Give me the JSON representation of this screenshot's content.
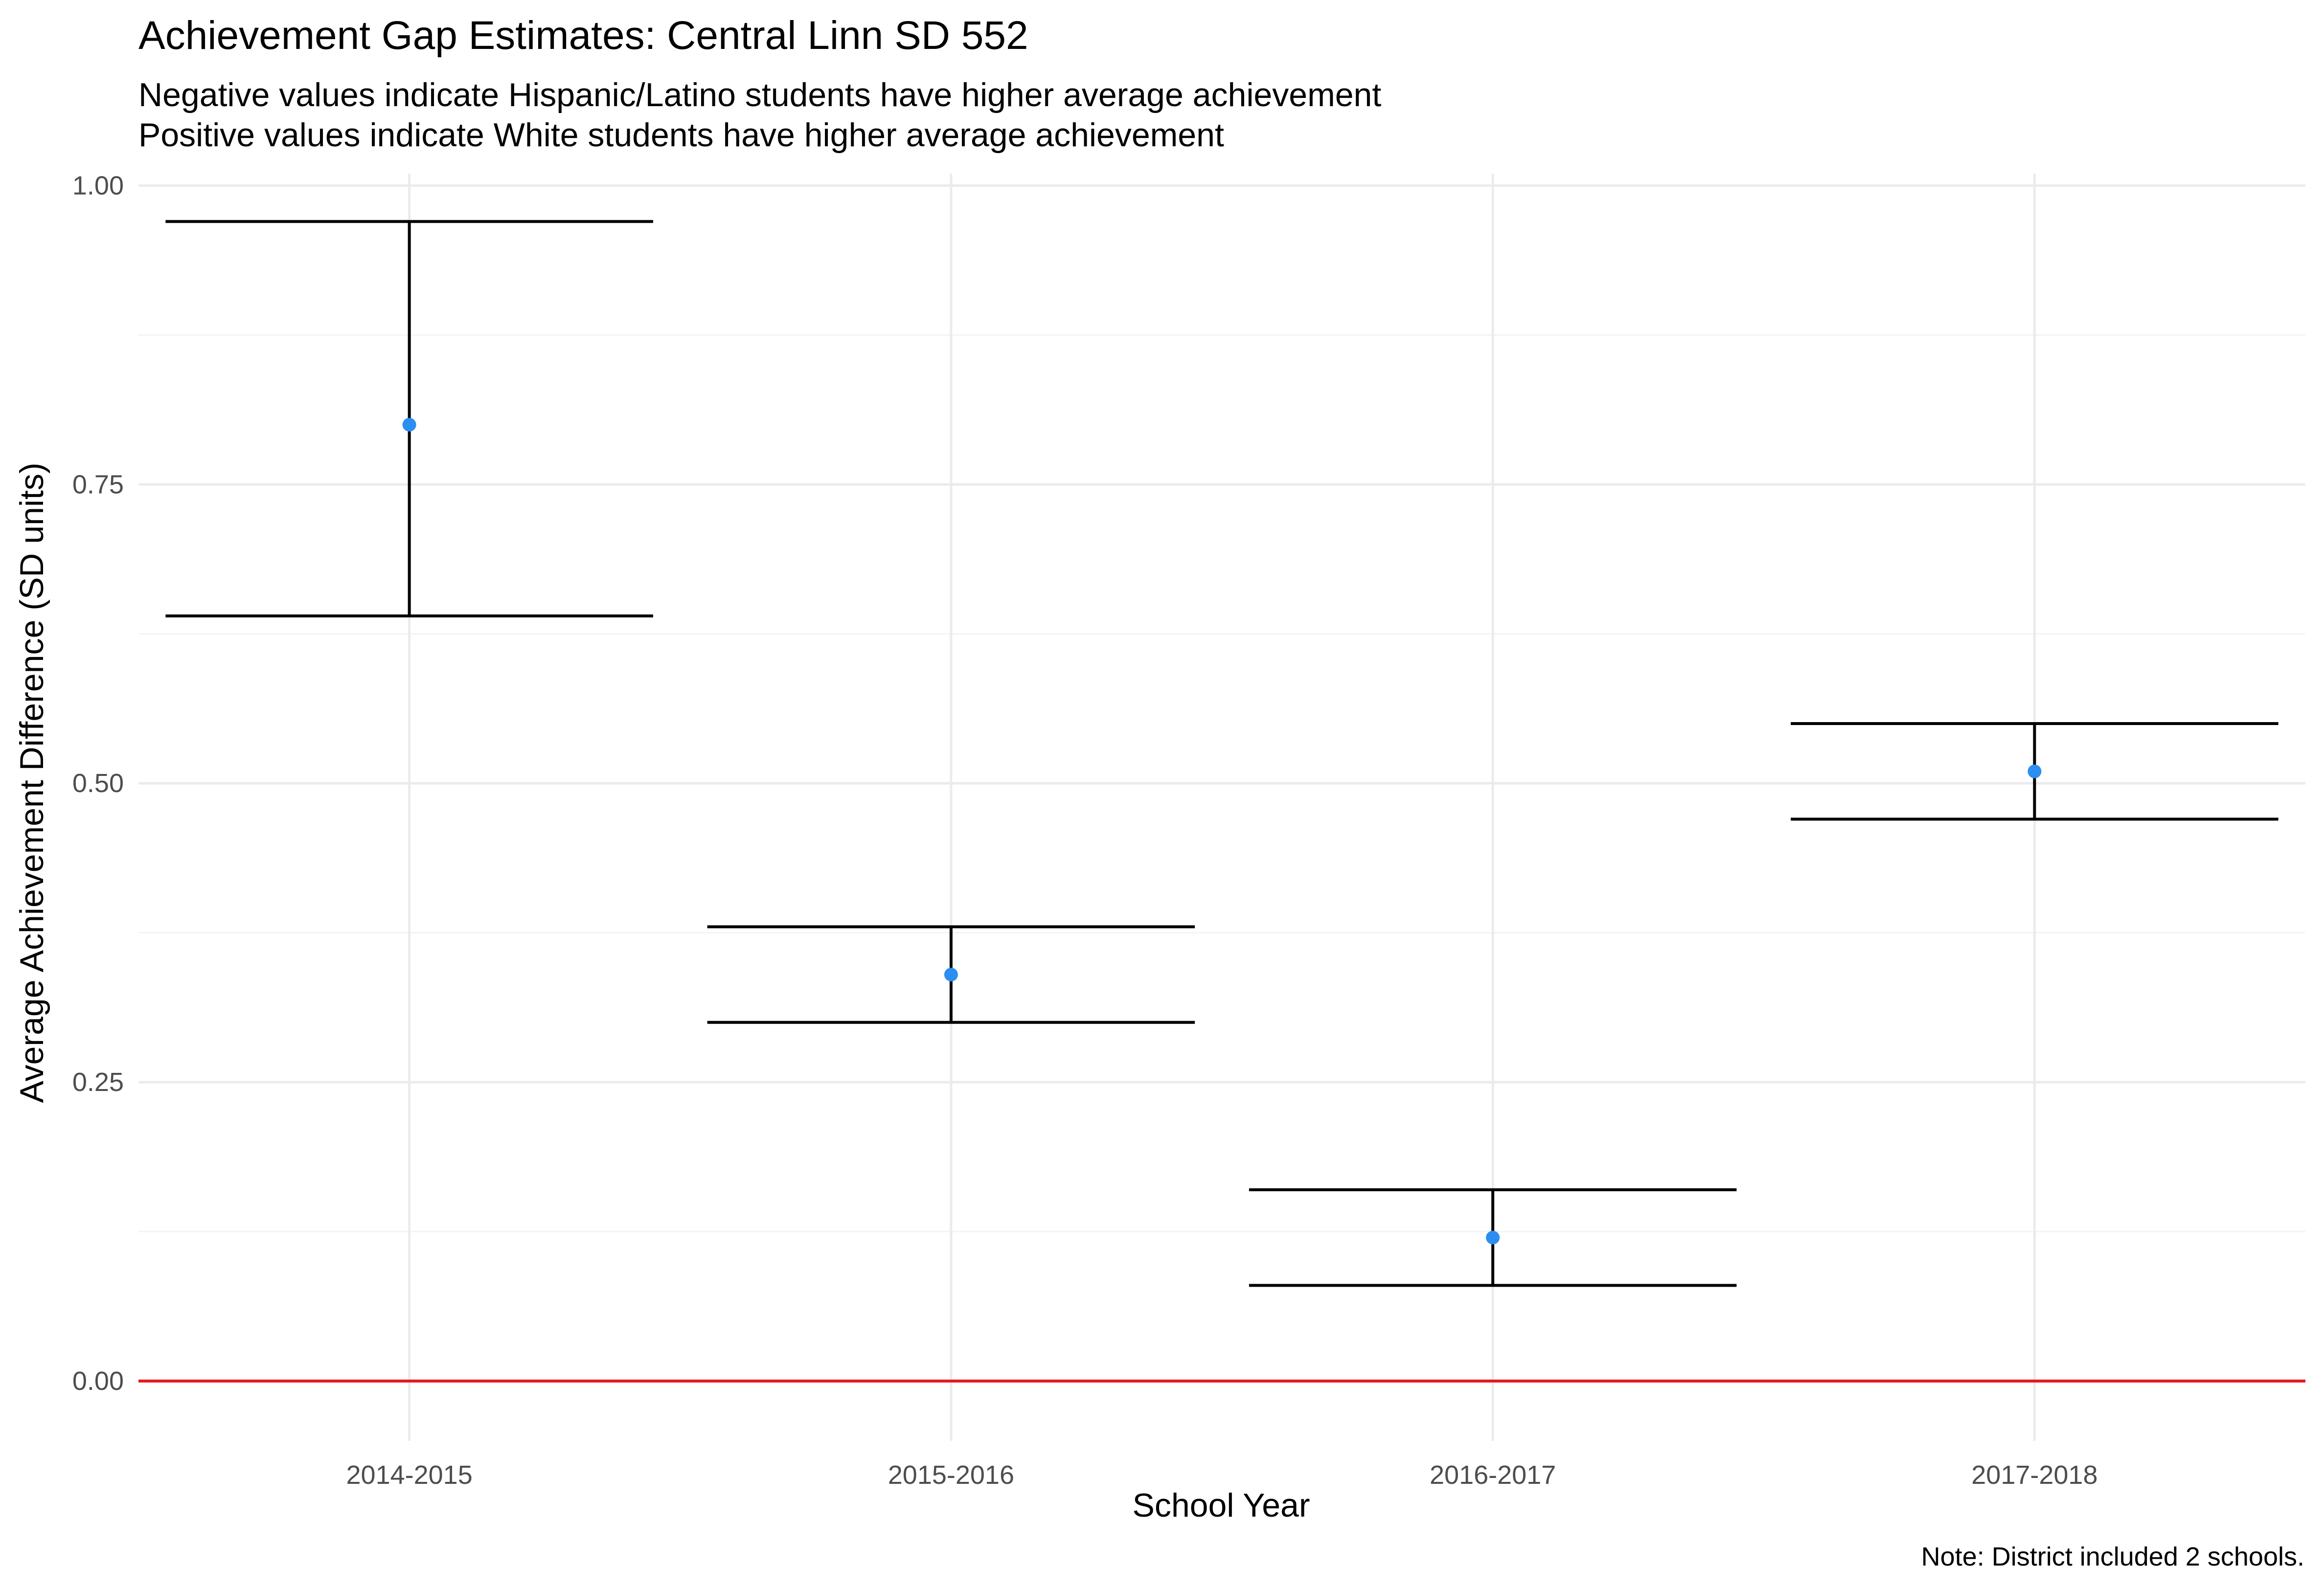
{
  "chart_data": {
    "type": "errorbar",
    "title": "Achievement Gap Estimates: Central Linn SD 552",
    "subtitle_lines": [
      "Negative values indicate Hispanic/Latino students have higher average achievement",
      "Positive values indicate White students have higher average achievement"
    ],
    "xlabel": "School Year",
    "ylabel": "Average Achievement Difference (SD units)",
    "caption": "Note: District included 2 schools.",
    "categories": [
      "2014-2015",
      "2015-2016",
      "2016-2017",
      "2017-2018"
    ],
    "points": [
      {
        "x": "2014-2015",
        "estimate": 0.8,
        "lower": 0.64,
        "upper": 0.97
      },
      {
        "x": "2015-2016",
        "estimate": 0.34,
        "lower": 0.3,
        "upper": 0.38
      },
      {
        "x": "2016-2017",
        "estimate": 0.12,
        "lower": 0.08,
        "upper": 0.16
      },
      {
        "x": "2017-2018",
        "estimate": 0.51,
        "lower": 0.47,
        "upper": 0.55
      }
    ],
    "yticks": [
      0.0,
      0.25,
      0.5,
      0.75,
      1.0
    ],
    "ytick_labels": [
      "0.00",
      "0.25",
      "0.50",
      "0.75",
      "1.00"
    ],
    "ylim": [
      -0.05,
      1.01
    ],
    "reference_line": 0,
    "grid": true,
    "colors": {
      "point": "#2b8ef0",
      "errorbar": "#000000",
      "reference_line": "#e41a1c",
      "grid_major": "#ebebeb",
      "grid_minor": "#f4f4f4"
    }
  }
}
